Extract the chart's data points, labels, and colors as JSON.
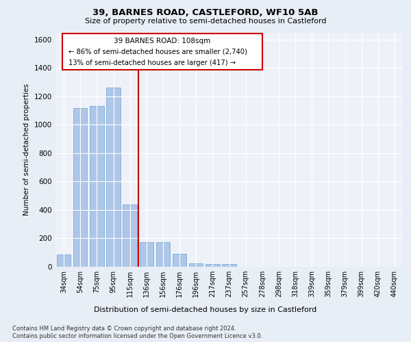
{
  "title": "39, BARNES ROAD, CASTLEFORD, WF10 5AB",
  "subtitle": "Size of property relative to semi-detached houses in Castleford",
  "xlabel": "Distribution of semi-detached houses by size in Castleford",
  "ylabel": "Number of semi-detached properties",
  "categories": [
    "34sqm",
    "54sqm",
    "75sqm",
    "95sqm",
    "115sqm",
    "136sqm",
    "156sqm",
    "176sqm",
    "196sqm",
    "217sqm",
    "237sqm",
    "257sqm",
    "278sqm",
    "298sqm",
    "318sqm",
    "339sqm",
    "359sqm",
    "379sqm",
    "399sqm",
    "420sqm",
    "440sqm"
  ],
  "values": [
    85,
    1120,
    1130,
    1260,
    440,
    175,
    175,
    90,
    25,
    18,
    18,
    0,
    0,
    0,
    0,
    0,
    0,
    0,
    0,
    0,
    0
  ],
  "bar_color": "#aec6e8",
  "bar_edge_color": "#7aadd4",
  "vline_x": 4.5,
  "vline_color": "#cc0000",
  "annotation_box_color": "#ffffff",
  "annotation_border_color": "#cc0000",
  "annotation_text_line1": "39 BARNES ROAD: 108sqm",
  "annotation_text_line2": "← 86% of semi-detached houses are smaller (2,740)",
  "annotation_text_line3": "13% of semi-detached houses are larger (417) →",
  "ylim": [
    0,
    1650
  ],
  "yticks": [
    0,
    200,
    400,
    600,
    800,
    1000,
    1200,
    1400,
    1600
  ],
  "footer_line1": "Contains HM Land Registry data © Crown copyright and database right 2024.",
  "footer_line2": "Contains public sector information licensed under the Open Government Licence v3.0.",
  "bg_color": "#e8eef5",
  "plot_bg_color": "#eef2f8"
}
